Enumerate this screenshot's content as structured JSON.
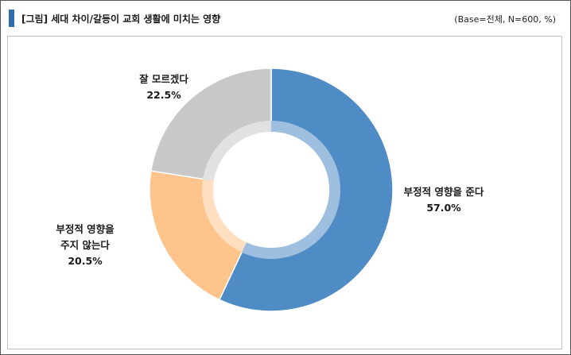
{
  "header": {
    "title": "[그림] 세대 차이/갈등이 교회 생활에 미치는 영향",
    "base_note": "(Base=전체, N=600, %)"
  },
  "chart_data": {
    "type": "pie",
    "donut": true,
    "title": "세대 차이/갈등이 교회 생활에 미치는 영향",
    "base": "Base=전체, N=600, %",
    "unit": "%",
    "slices": [
      {
        "label_lines": [
          "부정적 영향을 준다"
        ],
        "value": 57.0,
        "value_label": "57.0%",
        "color": "#4f8bc4"
      },
      {
        "label_lines": [
          "부정적 영향을",
          "주지 않는다"
        ],
        "value": 20.5,
        "value_label": "20.5%",
        "color": "#ffc48c"
      },
      {
        "label_lines": [
          "잘 모르겠다"
        ],
        "value": 22.5,
        "value_label": "22.5%",
        "color": "#c8c8c8"
      }
    ]
  }
}
